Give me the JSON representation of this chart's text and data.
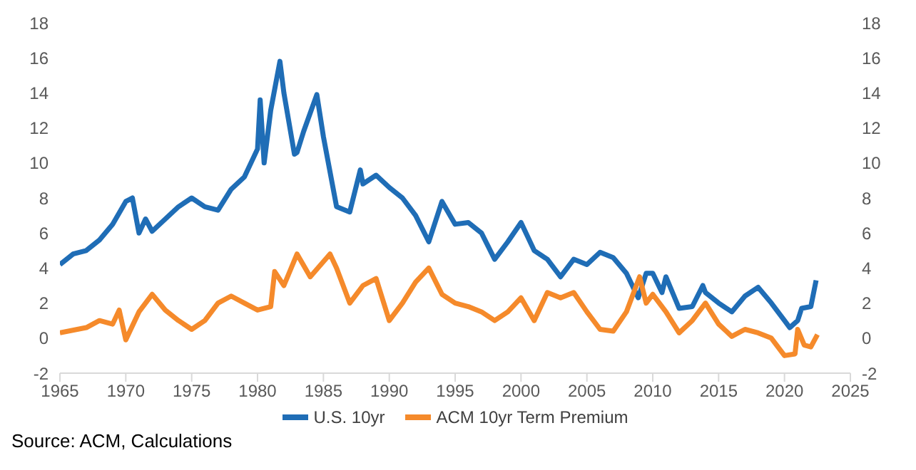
{
  "chart_data": {
    "type": "line",
    "xlim": [
      1965,
      2025
    ],
    "xticks": [
      1965,
      1970,
      1975,
      1980,
      1985,
      1990,
      1995,
      2000,
      2005,
      2010,
      2015,
      2020,
      2025
    ],
    "ylim": [
      -2,
      18
    ],
    "yticks": [
      -2,
      0,
      2,
      4,
      6,
      8,
      10,
      12,
      14,
      16,
      18
    ],
    "y2lim": [
      -2,
      18
    ],
    "y2ticks": [
      -2,
      0,
      2,
      4,
      6,
      8,
      10,
      12,
      14,
      16,
      18
    ],
    "grid": false,
    "legend": "bottom",
    "marker": "none",
    "line_style": "solid",
    "annotations": [
      "Source: ACM, Calculations"
    ],
    "series": [
      {
        "name": "U.S. 10yr",
        "color": "#1f6db6",
        "x": [
          1965,
          1966,
          1967,
          1968,
          1969,
          1970,
          1970.5,
          1971,
          1971.5,
          1972,
          1973,
          1974,
          1975,
          1976,
          1977,
          1978,
          1979,
          1980,
          1980.2,
          1980.5,
          1981,
          1981.7,
          1982,
          1982.8,
          1983,
          1983.5,
          1984.5,
          1985,
          1986,
          1987,
          1987.8,
          1988,
          1989,
          1990,
          1991,
          1992,
          1993,
          1994,
          1995,
          1996,
          1997,
          1998,
          1999,
          2000,
          2001,
          2002,
          2003,
          2004,
          2005,
          2006,
          2007,
          2008,
          2008.9,
          2009.5,
          2010,
          2010.7,
          2011,
          2012,
          2013,
          2013.8,
          2014,
          2015,
          2016,
          2017,
          2018,
          2019,
          2020,
          2020.4,
          2021,
          2021.3,
          2022,
          2022.4
        ],
        "values": [
          4.2,
          4.8,
          5.0,
          5.6,
          6.5,
          7.8,
          8.0,
          6.0,
          6.8,
          6.1,
          6.8,
          7.5,
          8.0,
          7.5,
          7.3,
          8.5,
          9.2,
          10.8,
          13.6,
          10.0,
          13.0,
          15.8,
          14.0,
          10.5,
          10.6,
          11.8,
          13.9,
          11.5,
          7.5,
          7.2,
          9.6,
          8.8,
          9.3,
          8.6,
          8.0,
          7.0,
          5.5,
          7.8,
          6.5,
          6.6,
          6.0,
          4.5,
          5.5,
          6.6,
          5.0,
          4.5,
          3.5,
          4.5,
          4.2,
          4.9,
          4.6,
          3.7,
          2.3,
          3.7,
          3.7,
          2.6,
          3.5,
          1.7,
          1.8,
          3.0,
          2.6,
          2.0,
          1.5,
          2.4,
          2.9,
          2.0,
          1.0,
          0.6,
          1.0,
          1.7,
          1.8,
          3.3
        ]
      },
      {
        "name": "ACM 10yr Term Premium",
        "color": "#f58a2b",
        "x": [
          1965,
          1967,
          1968,
          1969,
          1969.5,
          1970,
          1971,
          1972,
          1973,
          1974,
          1975,
          1976,
          1977,
          1978,
          1979,
          1980,
          1981,
          1981.3,
          1982,
          1983,
          1984,
          1985.5,
          1986,
          1987,
          1988,
          1989,
          1990,
          1991,
          1992,
          1993,
          1994,
          1995,
          1996,
          1997,
          1998,
          1999,
          2000,
          2001,
          2002,
          2003,
          2004,
          2005,
          2006,
          2007,
          2008,
          2009,
          2009.5,
          2010,
          2011,
          2012,
          2013,
          2014,
          2015,
          2016,
          2017,
          2018,
          2019,
          2020,
          2020.8,
          2021,
          2021.5,
          2022,
          2022.5
        ],
        "values": [
          0.3,
          0.6,
          1.0,
          0.8,
          1.6,
          -0.1,
          1.5,
          2.5,
          1.6,
          1.0,
          0.5,
          1.0,
          2.0,
          2.4,
          2.0,
          1.6,
          1.8,
          3.8,
          3.0,
          4.8,
          3.5,
          4.8,
          4.0,
          2.0,
          3.0,
          3.4,
          1.0,
          2.0,
          3.2,
          4.0,
          2.5,
          2.0,
          1.8,
          1.5,
          1.0,
          1.5,
          2.3,
          1.0,
          2.6,
          2.3,
          2.6,
          1.5,
          0.5,
          0.4,
          1.5,
          3.5,
          2.0,
          2.5,
          1.5,
          0.3,
          1.0,
          2.0,
          0.8,
          0.1,
          0.5,
          0.3,
          0.0,
          -1.0,
          -0.9,
          0.5,
          -0.4,
          -0.5,
          0.2
        ]
      }
    ]
  }
}
